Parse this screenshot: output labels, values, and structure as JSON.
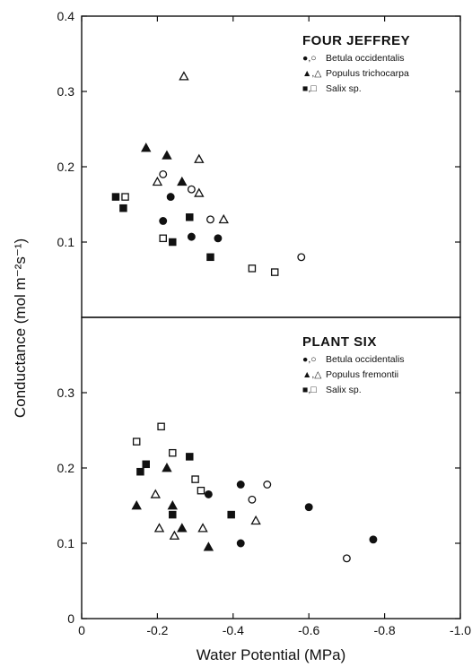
{
  "chart_data": {
    "type": "scatter",
    "xlabel": "Water Potential (MPa)",
    "ylabel": "Conductance (mol m⁻²s⁻¹)",
    "xlim": [
      0,
      -1.0
    ],
    "x_ticks": [
      "0",
      "-0.2",
      "-0.4",
      "-0.6",
      "-0.8",
      "-1.0"
    ],
    "grid": false,
    "panels": [
      {
        "title": "FOUR JEFFREY",
        "ylim": [
          0,
          0.4
        ],
        "y_ticks": [
          {
            "value": 0.1,
            "label": "0.1"
          },
          {
            "value": 0.2,
            "label": "0.2"
          },
          {
            "value": 0.3,
            "label": "0.3"
          },
          {
            "value": 0.4,
            "label": "0.4"
          }
        ],
        "legend": [
          {
            "symbols": "●,○",
            "label": "Betula occidentalis"
          },
          {
            "symbols": "▲,△",
            "label": "Populus trichocarpa"
          },
          {
            "symbols": "■,□",
            "label": "Salix sp."
          }
        ],
        "series": [
          {
            "species": "Betula occidentalis",
            "marker": "circle",
            "filled": true,
            "x": [
              -0.215,
              -0.235,
              -0.29,
              -0.36
            ],
            "y": [
              0.128,
              0.16,
              0.107,
              0.105
            ]
          },
          {
            "species": "Betula occidentalis",
            "marker": "circle",
            "filled": false,
            "x": [
              -0.215,
              -0.29,
              -0.34,
              -0.58
            ],
            "y": [
              0.19,
              0.17,
              0.13,
              0.08
            ]
          },
          {
            "species": "Populus trichocarpa",
            "marker": "triangle",
            "filled": true,
            "x": [
              -0.17,
              -0.225,
              -0.265
            ],
            "y": [
              0.225,
              0.215,
              0.18
            ]
          },
          {
            "species": "Populus trichocarpa",
            "marker": "triangle",
            "filled": false,
            "x": [
              -0.2,
              -0.27,
              -0.31,
              -0.31,
              -0.375
            ],
            "y": [
              0.18,
              0.32,
              0.21,
              0.165,
              0.13
            ]
          },
          {
            "species": "Salix sp.",
            "marker": "square",
            "filled": true,
            "x": [
              -0.09,
              -0.11,
              -0.24,
              -0.285,
              -0.34
            ],
            "y": [
              0.16,
              0.145,
              0.1,
              0.133,
              0.08
            ]
          },
          {
            "species": "Salix sp.",
            "marker": "square",
            "filled": false,
            "x": [
              -0.115,
              -0.215,
              -0.45,
              -0.51
            ],
            "y": [
              0.16,
              0.105,
              0.065,
              0.06
            ]
          }
        ]
      },
      {
        "title": "PLANT SIX",
        "ylim": [
          0,
          0.4
        ],
        "y_ticks": [
          {
            "value": 0,
            "label": "0"
          },
          {
            "value": 0.1,
            "label": "0.1"
          },
          {
            "value": 0.2,
            "label": "0.2"
          },
          {
            "value": 0.3,
            "label": "0.3"
          }
        ],
        "legend": [
          {
            "symbols": "●,○",
            "label": "Betula occidentalis"
          },
          {
            "symbols": "▲,△",
            "label": "Populus fremontii"
          },
          {
            "symbols": "■,□",
            "label": "Salix sp."
          }
        ],
        "series": [
          {
            "species": "Betula occidentalis",
            "marker": "circle",
            "filled": true,
            "x": [
              -0.335,
              -0.42,
              -0.42,
              -0.6,
              -0.77
            ],
            "y": [
              0.165,
              0.178,
              0.1,
              0.148,
              0.105
            ]
          },
          {
            "species": "Betula occidentalis",
            "marker": "circle",
            "filled": false,
            "x": [
              -0.45,
              -0.49,
              -0.7
            ],
            "y": [
              0.158,
              0.178,
              0.08
            ]
          },
          {
            "species": "Populus fremontii",
            "marker": "triangle",
            "filled": true,
            "x": [
              -0.145,
              -0.225,
              -0.24,
              -0.265,
              -0.335
            ],
            "y": [
              0.15,
              0.2,
              0.15,
              0.12,
              0.095
            ]
          },
          {
            "species": "Populus fremontii",
            "marker": "triangle",
            "filled": false,
            "x": [
              -0.195,
              -0.205,
              -0.245,
              -0.32,
              -0.46
            ],
            "y": [
              0.165,
              0.12,
              0.11,
              0.12,
              0.13
            ]
          },
          {
            "species": "Salix sp.",
            "marker": "square",
            "filled": true,
            "x": [
              -0.155,
              -0.17,
              -0.24,
              -0.285,
              -0.395
            ],
            "y": [
              0.195,
              0.205,
              0.138,
              0.215,
              0.138
            ]
          },
          {
            "species": "Salix sp.",
            "marker": "square",
            "filled": false,
            "x": [
              -0.145,
              -0.21,
              -0.24,
              -0.3,
              -0.315
            ],
            "y": [
              0.235,
              0.255,
              0.22,
              0.185,
              0.17
            ]
          }
        ]
      }
    ]
  }
}
